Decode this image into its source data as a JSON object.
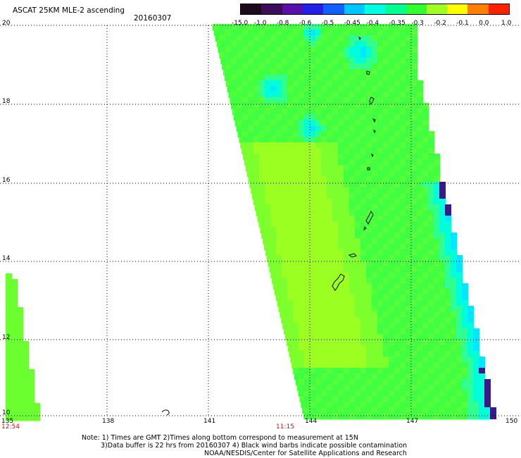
{
  "title": "ASCAT 25KM MLE-2 ascending",
  "date": "20160307",
  "colorbar": {
    "labels": [
      "-15.0",
      "-1.0",
      "-0.8",
      "-0.6",
      "-0.5",
      "-0.45",
      "-0.4",
      "-0.35",
      "-0.3",
      "-0.2",
      "-0.1",
      "0.0",
      "1.0"
    ],
    "colors": [
      "#1a0a1a",
      "#3c0b59",
      "#5a10a8",
      "#2020e6",
      "#1060ff",
      "#00c6ff",
      "#00ffe0",
      "#00ff90",
      "#30ff30",
      "#a0ff20",
      "#ffff00",
      "#ff8000",
      "#ff2000"
    ]
  },
  "axes": {
    "lat_labels": [
      "20",
      "18",
      "16",
      "14",
      "12",
      "10"
    ],
    "lon_labels": [
      "135",
      "138",
      "141",
      "144",
      "147",
      "150"
    ],
    "lat_range": [
      10,
      20
    ],
    "lon_range": [
      135,
      150
    ],
    "grid": "dotted"
  },
  "times": {
    "left": "12:54",
    "middle": "11:15"
  },
  "notes": {
    "line1": "Note: 1) Times are GMT 2)Times along bottom correspond to measurement at 15N",
    "line2": "3)Data buffer is 22 hrs from 20160307 4) Black wind barbs indicate possible contamination",
    "line3": "NOAA/NESDIS/Center for Satellite Applications and Research"
  }
}
